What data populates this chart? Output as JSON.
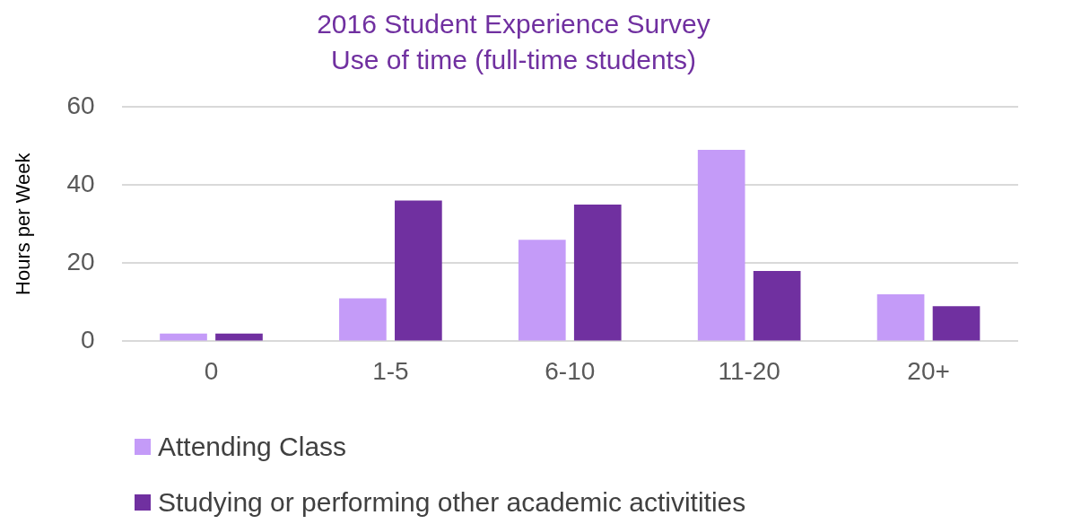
{
  "chart_data": {
    "type": "bar",
    "title": "2016 Student Experience Survey",
    "subtitle": "Use of time (full-time students)",
    "ylabel": "Hours per Week",
    "categories": [
      "0",
      "1-5",
      "6-10",
      "11-20",
      "20+"
    ],
    "series": [
      {
        "name": "Attending Class",
        "color": "#c49bf8",
        "values": [
          2,
          11,
          26,
          49,
          12
        ]
      },
      {
        "name": "Studying or performing other academic activitities",
        "color": "#7030a0",
        "values": [
          2,
          36,
          35,
          18,
          9
        ]
      }
    ],
    "ylim": [
      0,
      60
    ],
    "yticks": [
      0,
      20,
      40,
      60
    ],
    "grid": "y",
    "legend": "bottom"
  }
}
